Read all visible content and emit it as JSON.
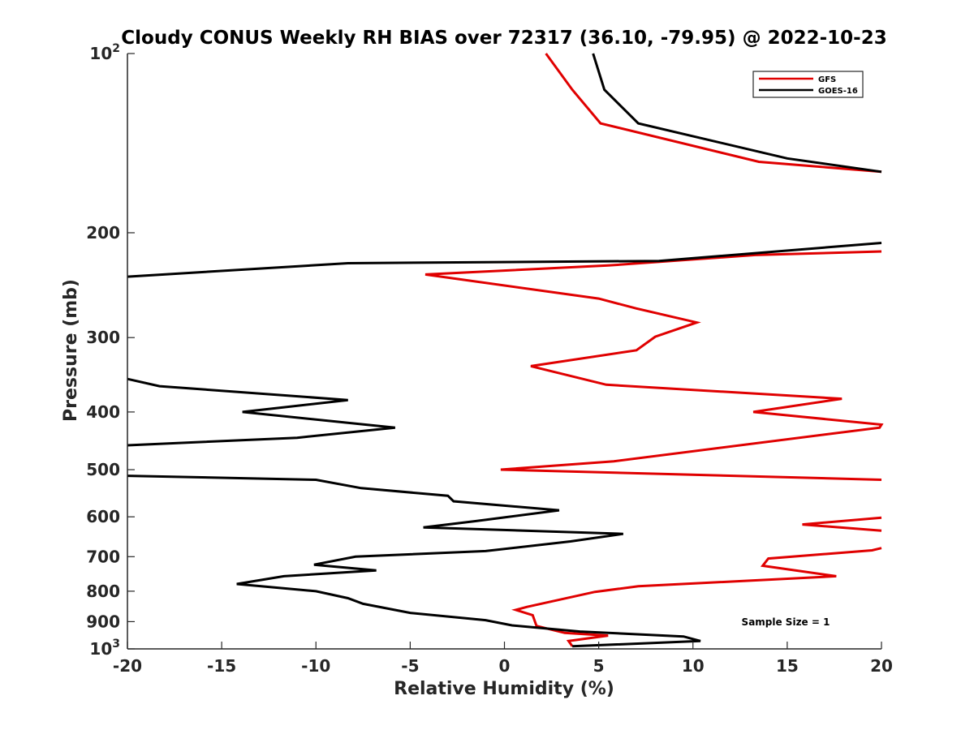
{
  "chart_data": {
    "type": "line",
    "title": "Cloudy CONUS Weekly RH BIAS over 72317 (36.10, -79.95) @ 2022-10-23",
    "xlabel": "Relative Humidity (%)",
    "ylabel": "Pressure (mb)",
    "xlim": [
      -20,
      20
    ],
    "ylim": [
      100,
      1000
    ],
    "y_scale": "log",
    "y_reversed": true,
    "grid": false,
    "legend_position": "top-right",
    "x_ticks": [
      "-20",
      "-15",
      "-10",
      "-5",
      "0",
      "5",
      "10",
      "15",
      "20"
    ],
    "x_tick_values": [
      -20,
      -15,
      -10,
      -5,
      0,
      5,
      10,
      15,
      20
    ],
    "y_ticks": [
      {
        "value": 100,
        "base": "10",
        "exp": "2"
      },
      {
        "value": 200,
        "base": "200",
        "exp": ""
      },
      {
        "value": 300,
        "base": "300",
        "exp": ""
      },
      {
        "value": 400,
        "base": "400",
        "exp": ""
      },
      {
        "value": 500,
        "base": "500",
        "exp": ""
      },
      {
        "value": 600,
        "base": "600",
        "exp": ""
      },
      {
        "value": 700,
        "base": "700",
        "exp": ""
      },
      {
        "value": 800,
        "base": "800",
        "exp": ""
      },
      {
        "value": 900,
        "base": "900",
        "exp": ""
      },
      {
        "value": 1000,
        "base": "10",
        "exp": "3"
      }
    ],
    "annotation": "Sample Size = 1",
    "series": [
      {
        "name": "GFS",
        "color": "#e00000",
        "segments": [
          [
            [
              2.2,
              100
            ],
            [
              3.6,
              115
            ],
            [
              5.1,
              131
            ],
            [
              13.5,
              152
            ],
            [
              20,
              158
            ]
          ],
          [
            [
              20,
              215
            ],
            [
              13.3,
              218
            ],
            [
              5.5,
              227
            ],
            [
              -4.2,
              235
            ],
            [
              5.0,
              258
            ],
            [
              7.0,
              268
            ],
            [
              10.2,
              283
            ],
            [
              8.0,
              299
            ],
            [
              7.0,
              315
            ],
            [
              1.4,
              335
            ],
            [
              5.4,
              360
            ],
            [
              17.9,
              380
            ],
            [
              13.2,
              400
            ],
            [
              20,
              420
            ],
            [
              19.9,
              425
            ],
            [
              5.8,
              484
            ],
            [
              -0.2,
              500
            ],
            [
              20,
              520
            ]
          ],
          [
            [
              20,
              602
            ],
            [
              15.8,
              618
            ],
            [
              20,
              633
            ]
          ],
          [
            [
              20,
              677
            ],
            [
              19.5,
              683
            ],
            [
              14.0,
              705
            ],
            [
              13.7,
              725
            ],
            [
              17.6,
              755
            ],
            [
              7.1,
              785
            ],
            [
              4.8,
              802
            ],
            [
              1.2,
              850
            ],
            [
              0.6,
              860
            ],
            [
              1.5,
              878
            ],
            [
              1.7,
              915
            ],
            [
              3.2,
              940
            ],
            [
              5.5,
              950
            ],
            [
              3.4,
              970
            ],
            [
              3.6,
              990
            ]
          ]
        ]
      },
      {
        "name": "GOES-16",
        "color": "#000000",
        "segments": [
          [
            [
              4.7,
              100
            ],
            [
              5.3,
              115
            ],
            [
              7.1,
              131
            ],
            [
              15.0,
              150
            ],
            [
              20,
              158
            ]
          ],
          [
            [
              20,
              208
            ],
            [
              8.2,
              223
            ],
            [
              -8.3,
              225
            ],
            [
              -20,
              237
            ]
          ],
          [
            [
              -20,
              352
            ],
            [
              -18.3,
              362
            ],
            [
              -8.3,
              382
            ],
            [
              -13.9,
              400
            ],
            [
              -5.8,
              425
            ],
            [
              -11.0,
              442
            ],
            [
              -20,
              455
            ]
          ],
          [
            [
              -20,
              512
            ],
            [
              -10.0,
              520
            ],
            [
              -7.6,
              537
            ],
            [
              -3.0,
              553
            ],
            [
              -2.7,
              565
            ],
            [
              2.9,
              585
            ],
            [
              -1.5,
              610
            ],
            [
              -4.3,
              625
            ],
            [
              6.3,
              641
            ],
            [
              3.5,
              660
            ],
            [
              -1.0,
              685
            ],
            [
              -7.9,
              700
            ],
            [
              -10.1,
              722
            ],
            [
              -6.8,
              738
            ],
            [
              -11.7,
              755
            ],
            [
              -14.2,
              778
            ],
            [
              -10.0,
              800
            ],
            [
              -8.3,
              822
            ],
            [
              -7.5,
              840
            ],
            [
              -5.0,
              870
            ],
            [
              -1.0,
              895
            ],
            [
              0.4,
              913
            ],
            [
              4.0,
              935
            ],
            [
              9.5,
              953
            ],
            [
              10.4,
              970
            ],
            [
              3.6,
              990
            ]
          ]
        ]
      }
    ]
  }
}
